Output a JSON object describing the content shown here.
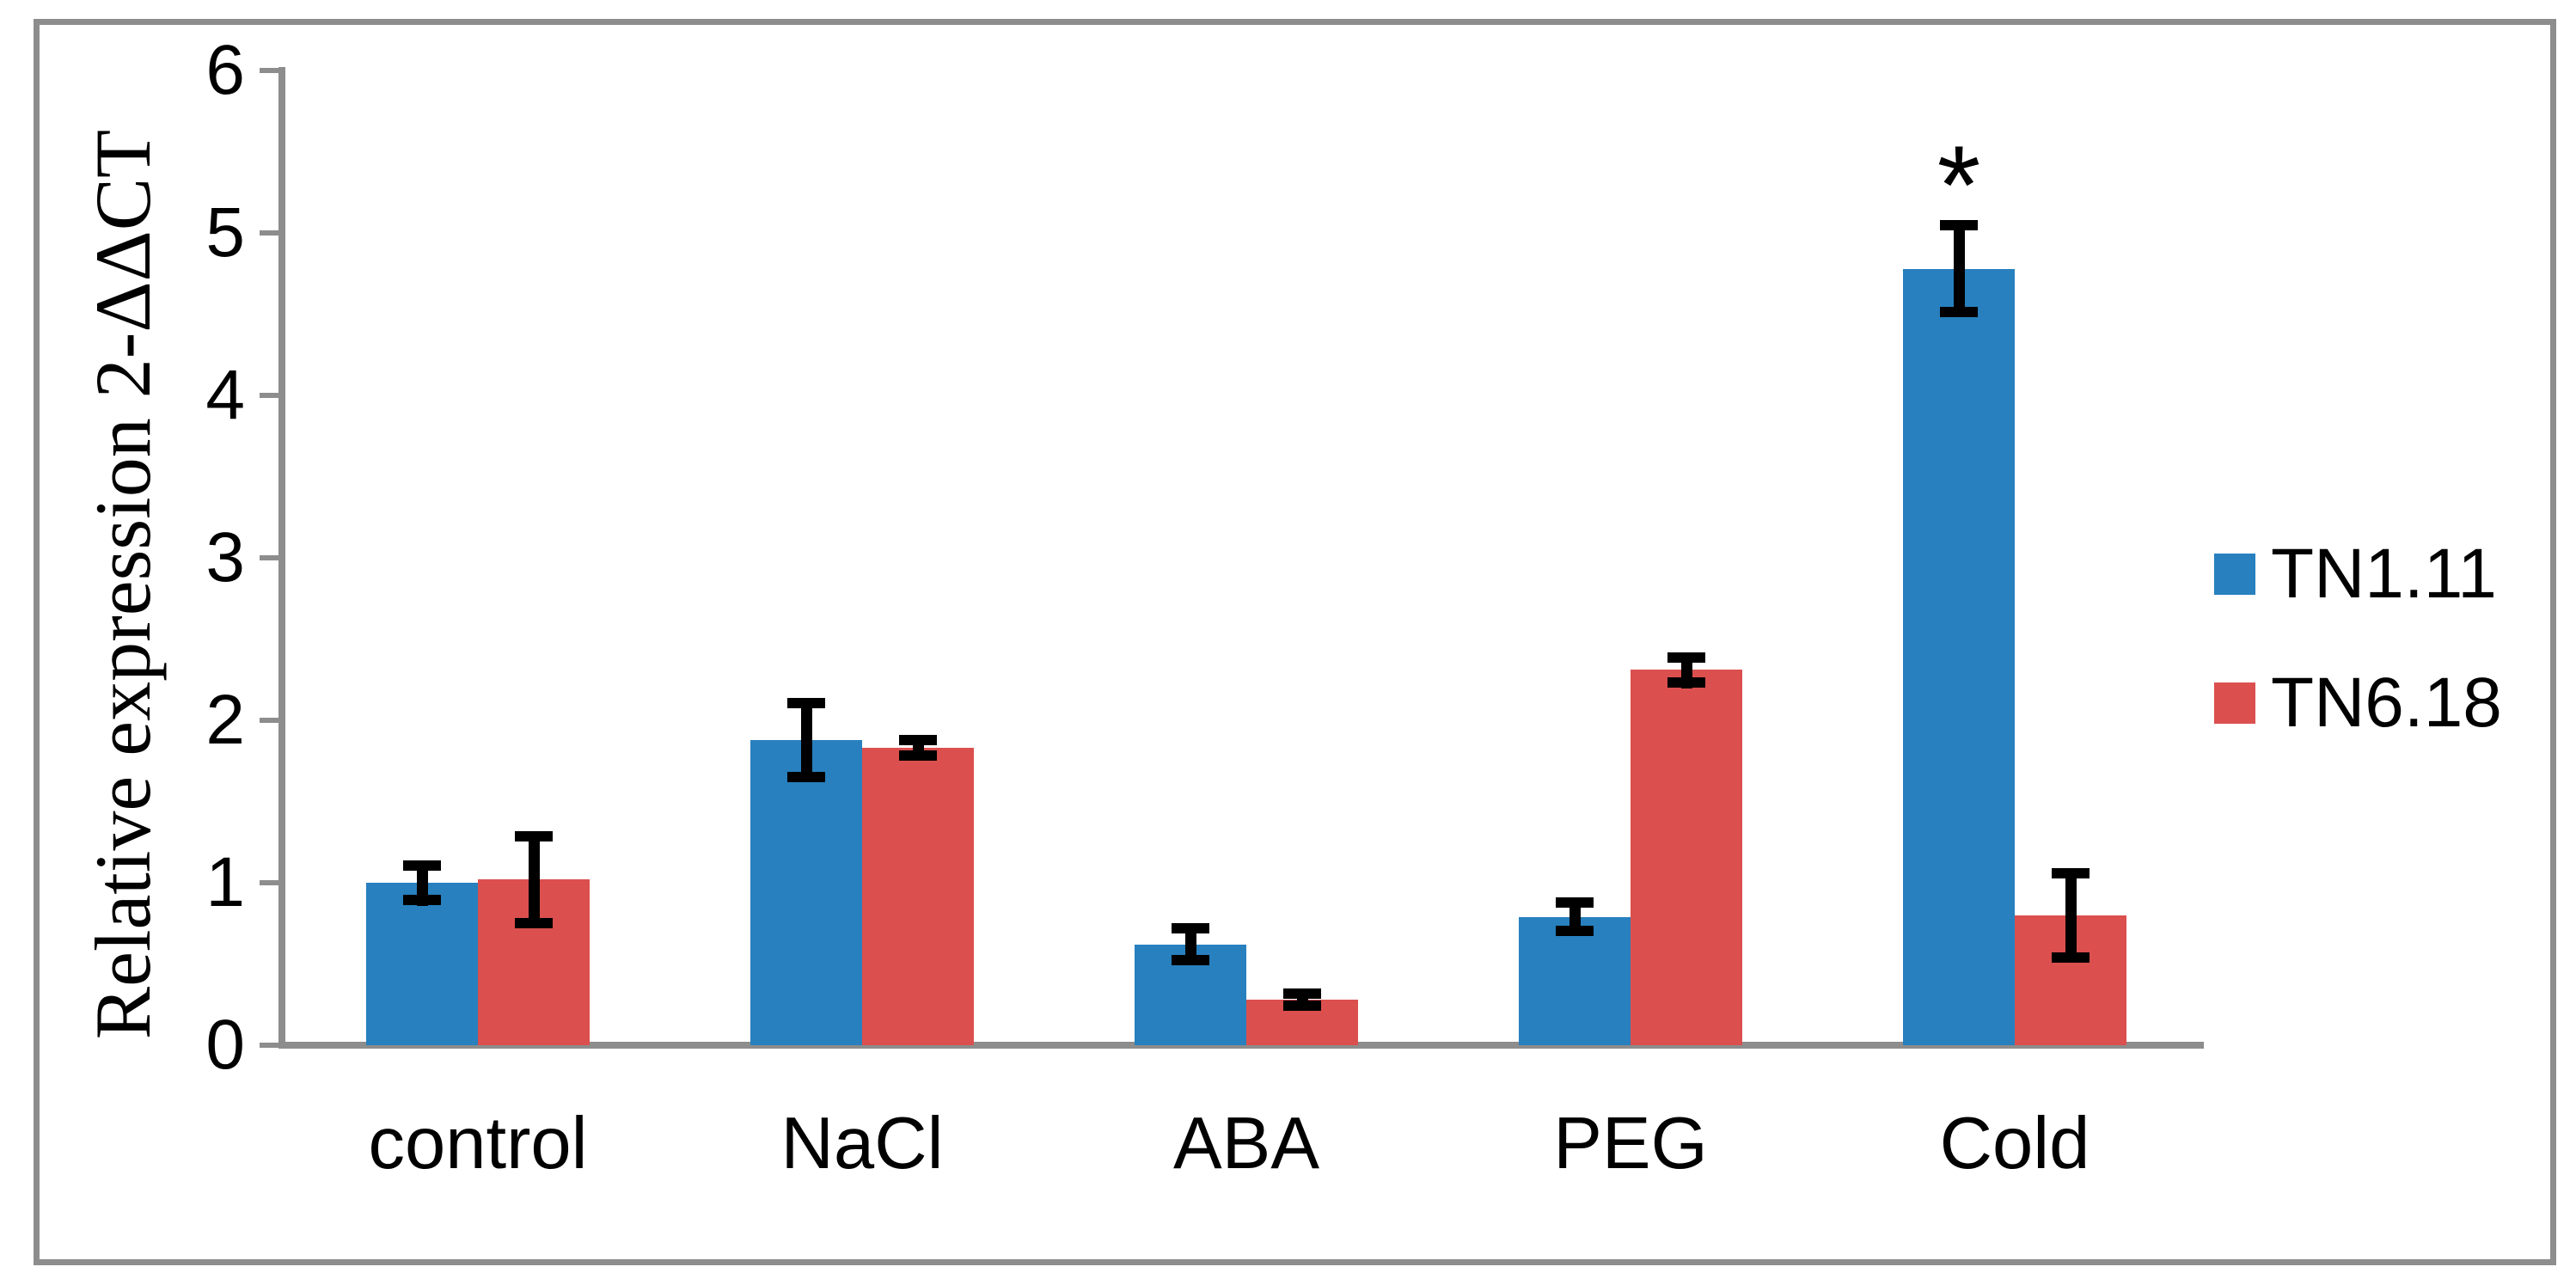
{
  "chart_data": {
    "type": "bar",
    "title": "",
    "ylabel": "Relative expression 2-ΔΔCT",
    "xlabel": "",
    "categories": [
      "control",
      "NaCl",
      "ABA",
      "PEG",
      "Cold"
    ],
    "series": [
      {
        "name": "TN1.11",
        "color": "#2880BE",
        "values": [
          1.0,
          1.88,
          0.62,
          0.79,
          4.78
        ],
        "errors": [
          0.14,
          0.26,
          0.13,
          0.12,
          0.3
        ]
      },
      {
        "name": "TN6.18",
        "color": "#DB504E",
        "values": [
          1.02,
          1.83,
          0.28,
          2.31,
          0.8
        ],
        "errors": [
          0.3,
          0.08,
          0.07,
          0.11,
          0.29
        ]
      }
    ],
    "ylim": [
      0,
      6
    ],
    "yticks": [
      0,
      1,
      2,
      3,
      4,
      5,
      6
    ],
    "grid": false,
    "legend_position": "right",
    "annotations": [
      {
        "text": "*",
        "category": "Cold",
        "series": "TN1.11",
        "meaning": "significant"
      }
    ],
    "axis_color": "#8D8D8D",
    "error_bar_color": "#000000",
    "bar_orientation": "vertical"
  }
}
